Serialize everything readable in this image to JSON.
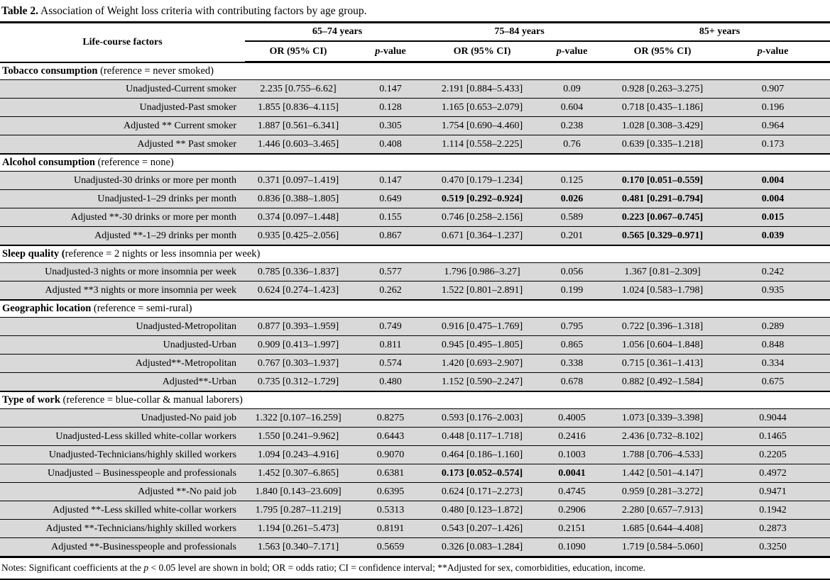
{
  "title": {
    "label": "Table 2.",
    "text": " Association of Weight loss criteria with contributing factors by age group."
  },
  "header": {
    "factor_col": "Life-course factors",
    "age_groups": [
      "65–74 years",
      "75–84 years",
      "85+ years"
    ],
    "or_label": "OR (95% CI)",
    "p_italic": "p",
    "p_suffix": "-value"
  },
  "sections": [
    {
      "label_bold": "Tobacco consumption",
      "label_rest": " (reference = never smoked)",
      "rows": [
        {
          "label": "Unadjusted-Current smoker",
          "cells": [
            "2.235 [0.755–6.62]",
            "0.147",
            "2.191 [0.884–5.433]",
            "0.09",
            "0.928 [0.263–3.275]",
            "0.907"
          ],
          "bold": []
        },
        {
          "label": "Unadjusted-Past smoker",
          "cells": [
            "1.855 [0.836–4.115]",
            "0.128",
            "1.165 [0.653–2.079]",
            "0.604",
            "0.718 [0.435–1.186]",
            "0.196"
          ],
          "bold": []
        },
        {
          "label": "Adjusted ** Current smoker",
          "cells": [
            "1.887 [0.561–6.341]",
            "0.305",
            "1.754 [0.690–4.460]",
            "0.238",
            "1.028 [0.308–3.429]",
            "0.964"
          ],
          "bold": []
        },
        {
          "label": "Adjusted ** Past smoker",
          "cells": [
            "1.446 [0.603–3.465]",
            "0.408",
            "1.114 [0.558–2.225]",
            "0.76",
            "0.639 [0.335–1.218]",
            "0.173"
          ],
          "bold": []
        }
      ]
    },
    {
      "label_bold": "Alcohol consumption",
      "label_rest": " (reference = none)",
      "rows": [
        {
          "label": "Unadjusted-30 drinks or more per month",
          "cells": [
            "0.371 [0.097–1.419]",
            "0.147",
            "0.470 [0.179–1.234]",
            "0.125",
            "0.170 [0.051–0.559]",
            "0.004"
          ],
          "bold": [
            4,
            5
          ]
        },
        {
          "label": "Unadjusted-1–29 drinks per month",
          "cells": [
            "0.836 [0.388–1.805]",
            "0.649",
            "0.519 [0.292–0.924]",
            "0.026",
            "0.481 [0.291–0.794]",
            "0.004"
          ],
          "bold": [
            2,
            3,
            4,
            5
          ]
        },
        {
          "label": "Adjusted **-30 drinks or more per month",
          "cells": [
            "0.374 [0.097–1.448]",
            "0.155",
            "0.746 [0.258–2.156]",
            "0.589",
            "0.223 [0.067–0.745]",
            "0.015"
          ],
          "bold": [
            4,
            5
          ]
        },
        {
          "label": "Adjusted **-1–29 drinks per month",
          "cells": [
            "0.935 [0.425–2.056]",
            "0.867",
            "0.671 [0.364–1.237]",
            "0.201",
            "0.565 [0.329–0.971]",
            "0.039"
          ],
          "bold": [
            4,
            5
          ]
        }
      ]
    },
    {
      "label_bold": "Sleep quality (",
      "label_rest": "reference = 2 nights or less insomnia per week)",
      "rows": [
        {
          "label": "Unadjusted-3 nights or more insomnia per week",
          "cells": [
            "0.785 [0.336–1.837]",
            "0.577",
            "1.796 [0.986–3.27]",
            "0.056",
            "1.367 [0.81–2.309]",
            "0.242"
          ],
          "bold": []
        },
        {
          "label": "Adjusted **3 nights or more insomnia per week",
          "cells": [
            "0.624 [0.274–1.423]",
            "0.262",
            "1.522 [0.801–2.891]",
            "0.199",
            "1.024 [0.583–1.798]",
            "0.935"
          ],
          "bold": []
        }
      ]
    },
    {
      "label_bold": "Geographic location",
      "label_rest": " (reference = semi-rural)",
      "rows": [
        {
          "label": "Unadjusted-Metropolitan",
          "cells": [
            "0.877 [0.393–1.959]",
            "0.749",
            "0.916 [0.475–1.769]",
            "0.795",
            "0.722 [0.396–1.318]",
            "0.289"
          ],
          "bold": []
        },
        {
          "label": "Unadjusted-Urban",
          "cells": [
            "0.909 [0.413–1.997]",
            "0.811",
            "0.945 [0.495–1.805]",
            "0.865",
            "1.056 [0.604–1.848]",
            "0.848"
          ],
          "bold": []
        },
        {
          "label": "Adjusted**-Metropolitan",
          "cells": [
            "0.767 [0.303–1.937]",
            "0.574",
            "1.420 [0.693–2.907]",
            "0.338",
            "0.715 [0.361–1.413]",
            "0.334"
          ],
          "bold": []
        },
        {
          "label": "Adjusted**-Urban",
          "cells": [
            "0.735 [0.312–1.729]",
            "0.480",
            "1.152 [0.590–2.247]",
            "0.678",
            "0.882 [0.492–1.584]",
            "0.675"
          ],
          "bold": []
        }
      ]
    },
    {
      "label_bold": "Type of work",
      "label_rest": " (reference = blue-collar & manual laborers)",
      "rows": [
        {
          "label": "Unadjusted-No paid job",
          "cells": [
            "1.322 [0.107–16.259]",
            "0.8275",
            "0.593 [0.176–2.003]",
            "0.4005",
            "1.073 [0.339–3.398]",
            "0.9044"
          ],
          "bold": []
        },
        {
          "label": "Unadjusted-Less skilled white-collar workers",
          "cells": [
            "1.550 [0.241–9.962]",
            "0.6443",
            "0.448 [0.117–1.718]",
            "0.2416",
            "2.436 [0.732–8.102]",
            "0.1465"
          ],
          "bold": []
        },
        {
          "label": "Unadjusted-Technicians/highly skilled workers",
          "cells": [
            "1.094 [0.243–4.916]",
            "0.9070",
            "0.464 [0.186–1.160]",
            "0.1003",
            "1.788 [0.706–4.533]",
            "0.2205"
          ],
          "bold": []
        },
        {
          "label": "Unadjusted – Businesspeople and professionals",
          "cells": [
            "1.452 [0.307–6.865]",
            "0.6381",
            "0.173 [0.052–0.574]",
            "0.0041",
            "1.442 [0.501–4.147]",
            "0.4972"
          ],
          "bold": [
            2,
            3
          ]
        },
        {
          "label": "Adjusted **-No paid job",
          "cells": [
            "1.840 [0.143–23.609]",
            "0.6395",
            "0.624 [0.171–2.273]",
            "0.4745",
            "0.959 [0.281–3.272]",
            "0.9471"
          ],
          "bold": []
        },
        {
          "label": "Adjusted **-Less skilled white-collar workers",
          "cells": [
            "1.795 [0.287–11.219]",
            "0.5313",
            "0.480 [0.123–1.872]",
            "0.2906",
            "2.280 [0.657–7.913]",
            "0.1942"
          ],
          "bold": []
        },
        {
          "label": "Adjusted **-Technicians/highly skilled workers",
          "cells": [
            "1.194 [0.261–5.473]",
            "0.8191",
            "0.543 [0.207–1.426]",
            "0.2151",
            "1.685 [0.644–4.408]",
            "0.2873"
          ],
          "bold": []
        },
        {
          "label": "Adjusted **-Businesspeople and professionals",
          "cells": [
            "1.563 [0.340–7.171]",
            "0.5659",
            "0.326 [0.083–1.284]",
            "0.1090",
            "1.719 [0.584–5.060]",
            "0.3250"
          ],
          "bold": []
        }
      ]
    }
  ],
  "notes": {
    "pre": "Notes: Significant coefficients at the ",
    "p_italic": "p",
    "post": " < 0.05 level are shown in bold; OR = odds ratio; CI = confidence interval; **Adjusted for sex, comorbidities, education, income."
  }
}
